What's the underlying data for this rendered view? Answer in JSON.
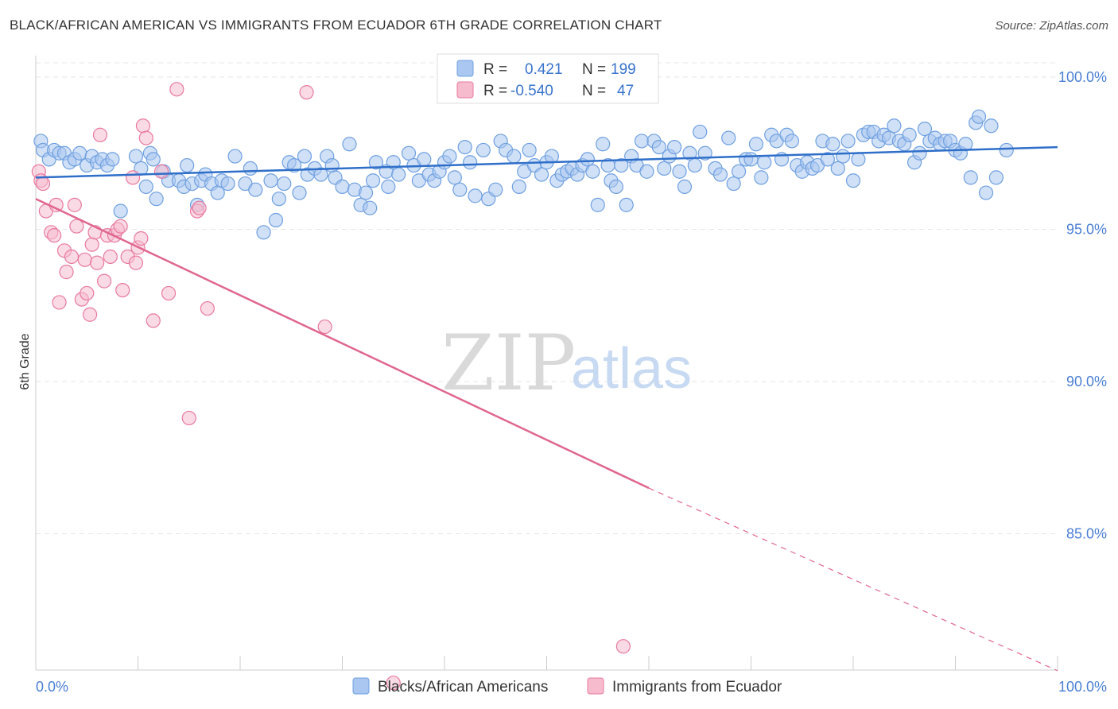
{
  "title": "BLACK/AFRICAN AMERICAN VS IMMIGRANTS FROM ECUADOR 6TH GRADE CORRELATION CHART",
  "source": "Source: ZipAtlas.com",
  "watermark": {
    "zip": "ZIP",
    "atlas": "atlas"
  },
  "colors": {
    "blue": "#6fa0e0",
    "blue_fill": "#a9c7f0",
    "pink": "#e87aa0",
    "pink_fill": "#f6bccd",
    "blue_line": "#2f6fc9",
    "pink_line": "#e0668f"
  },
  "stats_legend": [
    {
      "r_label": "R =",
      "r_value": "0.421",
      "n_label": "N =",
      "n_value": "199"
    },
    {
      "r_label": "R =",
      "r_value": "-0.540",
      "n_label": "N =",
      "n_value": "47"
    }
  ],
  "chart_data": {
    "type": "scatter",
    "ylabel": "6th Grade",
    "xlim": [
      0,
      100
    ],
    "ylim": [
      80,
      101.5
    ],
    "x_tick_labels": [
      "0.0%",
      "100.0%"
    ],
    "y_ticks": [
      {
        "value": 100,
        "label": "100.0%"
      },
      {
        "value": 95,
        "label": "95.0%"
      },
      {
        "value": 90,
        "label": "90.0%"
      },
      {
        "value": 85,
        "label": "85.0%"
      }
    ],
    "grid": true,
    "legend_placement": "bottom-center",
    "series": [
      {
        "name": "Blacks/African Americans",
        "color": "blue",
        "trend": {
          "x": [
            0,
            100
          ],
          "y": [
            96.7,
            97.7
          ]
        },
        "points": [
          [
            0.5,
            97.9
          ],
          [
            0.7,
            97.6
          ],
          [
            1.3,
            97.3
          ],
          [
            1.8,
            97.6
          ],
          [
            2.3,
            97.5
          ],
          [
            2.8,
            97.5
          ],
          [
            3.3,
            97.2
          ],
          [
            3.8,
            97.3
          ],
          [
            4.3,
            97.5
          ],
          [
            5.0,
            97.1
          ],
          [
            5.5,
            97.4
          ],
          [
            6.0,
            97.2
          ],
          [
            6.5,
            97.3
          ],
          [
            7.0,
            97.1
          ],
          [
            7.5,
            97.3
          ],
          [
            8.3,
            95.6
          ],
          [
            9.8,
            97.4
          ],
          [
            10.3,
            97.0
          ],
          [
            10.8,
            96.4
          ],
          [
            11.2,
            97.5
          ],
          [
            11.5,
            97.3
          ],
          [
            11.8,
            96.0
          ],
          [
            12.5,
            96.9
          ],
          [
            13.0,
            96.6
          ],
          [
            14.0,
            96.6
          ],
          [
            14.5,
            96.4
          ],
          [
            14.8,
            97.1
          ],
          [
            15.3,
            96.5
          ],
          [
            15.8,
            95.8
          ],
          [
            16.2,
            96.6
          ],
          [
            16.6,
            96.8
          ],
          [
            17.2,
            96.5
          ],
          [
            17.8,
            96.2
          ],
          [
            18.2,
            96.6
          ],
          [
            18.8,
            96.5
          ],
          [
            19.5,
            97.4
          ],
          [
            20.5,
            96.5
          ],
          [
            21.0,
            97.0
          ],
          [
            21.5,
            96.3
          ],
          [
            22.3,
            94.9
          ],
          [
            23.0,
            96.6
          ],
          [
            23.5,
            95.3
          ],
          [
            23.8,
            96.0
          ],
          [
            24.3,
            96.5
          ],
          [
            24.8,
            97.2
          ],
          [
            25.3,
            97.1
          ],
          [
            25.8,
            96.2
          ],
          [
            26.3,
            97.4
          ],
          [
            26.6,
            96.8
          ],
          [
            27.3,
            97.0
          ],
          [
            27.9,
            96.8
          ],
          [
            28.5,
            97.4
          ],
          [
            29.0,
            97.1
          ],
          [
            29.3,
            96.7
          ],
          [
            30.0,
            96.4
          ],
          [
            30.7,
            97.8
          ],
          [
            31.2,
            96.3
          ],
          [
            31.8,
            95.8
          ],
          [
            32.3,
            96.2
          ],
          [
            32.7,
            95.7
          ],
          [
            33.0,
            96.6
          ],
          [
            33.3,
            97.2
          ],
          [
            34.3,
            96.9
          ],
          [
            34.5,
            96.4
          ],
          [
            35.0,
            97.2
          ],
          [
            35.5,
            96.8
          ],
          [
            36.5,
            97.5
          ],
          [
            37.0,
            97.1
          ],
          [
            37.5,
            96.6
          ],
          [
            38.0,
            97.3
          ],
          [
            38.5,
            96.8
          ],
          [
            39.0,
            96.6
          ],
          [
            39.5,
            96.9
          ],
          [
            40.0,
            97.2
          ],
          [
            40.5,
            97.4
          ],
          [
            41.0,
            96.7
          ],
          [
            41.5,
            96.3
          ],
          [
            42.0,
            97.7
          ],
          [
            42.5,
            97.2
          ],
          [
            43.0,
            96.1
          ],
          [
            43.8,
            97.6
          ],
          [
            44.3,
            96.0
          ],
          [
            45.0,
            96.3
          ],
          [
            45.5,
            97.9
          ],
          [
            46.0,
            97.6
          ],
          [
            46.8,
            97.4
          ],
          [
            47.3,
            96.4
          ],
          [
            47.8,
            96.9
          ],
          [
            48.3,
            97.6
          ],
          [
            48.8,
            97.1
          ],
          [
            49.5,
            96.8
          ],
          [
            50.0,
            97.2
          ],
          [
            50.5,
            97.4
          ],
          [
            51.0,
            96.6
          ],
          [
            51.5,
            96.8
          ],
          [
            52.0,
            96.9
          ],
          [
            52.5,
            97.0
          ],
          [
            53.0,
            96.8
          ],
          [
            53.5,
            97.1
          ],
          [
            54.0,
            97.3
          ],
          [
            54.5,
            96.9
          ],
          [
            55.0,
            95.8
          ],
          [
            55.5,
            97.8
          ],
          [
            56.0,
            97.1
          ],
          [
            56.3,
            96.6
          ],
          [
            56.8,
            96.4
          ],
          [
            57.3,
            97.1
          ],
          [
            57.8,
            95.8
          ],
          [
            58.3,
            97.4
          ],
          [
            58.8,
            97.1
          ],
          [
            59.3,
            97.9
          ],
          [
            59.8,
            96.9
          ],
          [
            60.5,
            97.9
          ],
          [
            61.0,
            97.7
          ],
          [
            61.5,
            97.0
          ],
          [
            62.0,
            97.4
          ],
          [
            62.5,
            97.7
          ],
          [
            63.0,
            96.9
          ],
          [
            63.5,
            96.4
          ],
          [
            64.0,
            97.5
          ],
          [
            64.5,
            97.1
          ],
          [
            65.0,
            98.2
          ],
          [
            65.5,
            97.5
          ],
          [
            66.5,
            97.0
          ],
          [
            67.0,
            96.8
          ],
          [
            67.8,
            98.0
          ],
          [
            68.3,
            96.5
          ],
          [
            68.8,
            96.9
          ],
          [
            69.5,
            97.3
          ],
          [
            70.0,
            97.3
          ],
          [
            70.5,
            97.8
          ],
          [
            71.0,
            96.7
          ],
          [
            71.3,
            97.2
          ],
          [
            72.0,
            98.1
          ],
          [
            72.5,
            97.9
          ],
          [
            73.0,
            97.3
          ],
          [
            73.5,
            98.1
          ],
          [
            74.0,
            97.9
          ],
          [
            74.5,
            97.1
          ],
          [
            75.0,
            96.9
          ],
          [
            75.5,
            97.2
          ],
          [
            76.0,
            97.0
          ],
          [
            76.5,
            97.1
          ],
          [
            77.0,
            97.9
          ],
          [
            77.5,
            97.3
          ],
          [
            78.0,
            97.8
          ],
          [
            78.5,
            97.0
          ],
          [
            79.0,
            97.4
          ],
          [
            79.5,
            97.9
          ],
          [
            80.0,
            96.6
          ],
          [
            80.5,
            97.3
          ],
          [
            81.0,
            98.1
          ],
          [
            81.5,
            98.2
          ],
          [
            82.0,
            98.2
          ],
          [
            82.5,
            97.9
          ],
          [
            83.0,
            98.1
          ],
          [
            83.5,
            98.0
          ],
          [
            84.0,
            98.4
          ],
          [
            84.5,
            97.9
          ],
          [
            85.0,
            97.8
          ],
          [
            85.5,
            98.1
          ],
          [
            86.0,
            97.2
          ],
          [
            86.5,
            97.5
          ],
          [
            87.0,
            98.3
          ],
          [
            87.5,
            97.9
          ],
          [
            88.0,
            98.0
          ],
          [
            88.5,
            97.8
          ],
          [
            89.0,
            97.9
          ],
          [
            89.5,
            97.9
          ],
          [
            90.0,
            97.6
          ],
          [
            90.5,
            97.5
          ],
          [
            91.0,
            97.8
          ],
          [
            91.5,
            96.7
          ],
          [
            92.0,
            98.5
          ],
          [
            92.3,
            98.7
          ],
          [
            93.0,
            96.2
          ],
          [
            93.5,
            98.4
          ],
          [
            94.0,
            96.7
          ],
          [
            95.0,
            97.6
          ]
        ]
      },
      {
        "name": "Immigrants from Ecuador",
        "color": "pink",
        "trend": {
          "x": [
            0,
            60
          ],
          "y": [
            96.0,
            86.5
          ]
        },
        "trend_dashed": {
          "x": [
            60,
            100
          ],
          "y": [
            86.5,
            80.5
          ]
        },
        "points": [
          [
            0.3,
            96.9
          ],
          [
            0.5,
            96.6
          ],
          [
            0.7,
            96.5
          ],
          [
            1.0,
            95.6
          ],
          [
            1.5,
            94.9
          ],
          [
            1.8,
            94.8
          ],
          [
            2.0,
            95.8
          ],
          [
            2.3,
            92.6
          ],
          [
            2.8,
            94.3
          ],
          [
            3.0,
            93.6
          ],
          [
            3.5,
            94.1
          ],
          [
            3.8,
            95.8
          ],
          [
            4.0,
            95.1
          ],
          [
            4.5,
            92.7
          ],
          [
            4.8,
            94.0
          ],
          [
            5.0,
            92.9
          ],
          [
            5.3,
            92.2
          ],
          [
            5.5,
            94.5
          ],
          [
            5.8,
            94.9
          ],
          [
            6.0,
            93.9
          ],
          [
            6.3,
            98.1
          ],
          [
            6.7,
            93.3
          ],
          [
            7.0,
            94.8
          ],
          [
            7.3,
            94.1
          ],
          [
            7.7,
            94.8
          ],
          [
            8.0,
            95.0
          ],
          [
            8.3,
            95.1
          ],
          [
            8.5,
            93.0
          ],
          [
            9.0,
            94.1
          ],
          [
            9.5,
            96.7
          ],
          [
            9.8,
            93.9
          ],
          [
            10.0,
            94.4
          ],
          [
            10.3,
            94.7
          ],
          [
            10.5,
            98.4
          ],
          [
            10.8,
            98.0
          ],
          [
            11.5,
            92.0
          ],
          [
            12.3,
            96.9
          ],
          [
            13.0,
            92.9
          ],
          [
            13.8,
            99.6
          ],
          [
            15.0,
            88.8
          ],
          [
            15.8,
            95.6
          ],
          [
            16.0,
            95.7
          ],
          [
            16.8,
            92.4
          ],
          [
            26.5,
            99.5
          ],
          [
            28.3,
            91.8
          ],
          [
            35.0,
            80.1
          ],
          [
            57.5,
            81.3
          ]
        ]
      }
    ]
  }
}
